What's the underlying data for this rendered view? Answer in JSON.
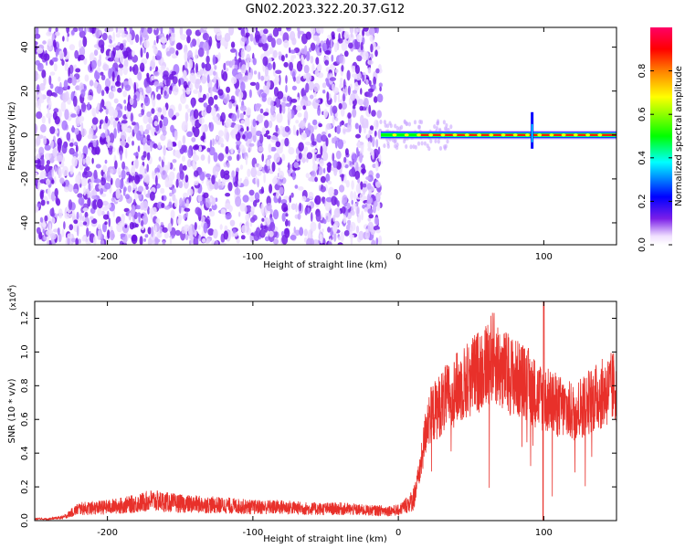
{
  "figure_title": "GN02.2023.322.20.37.G12",
  "colors": {
    "snr_line": "#e8302a",
    "axis": "#000000",
    "background": "#ffffff",
    "scatter_fill": "#7a2ee8"
  },
  "chart_data": [
    {
      "type": "heatmap",
      "title": "GN02.2023.322.20.37.G12",
      "xlabel": "Height of straight line (km)",
      "ylabel": "Frequency (Hz)",
      "xlim": [
        -250,
        150
      ],
      "ylim": [
        -50,
        49
      ],
      "x_ticks": [
        -200,
        -100,
        0,
        100
      ],
      "y_ticks": [
        -40,
        -20,
        0,
        20,
        40
      ],
      "x_tick_labels": [
        "-200",
        "-100",
        "0",
        "100"
      ],
      "y_tick_labels": [
        "-40",
        "-20",
        "0",
        "20",
        "40"
      ],
      "colorbar": {
        "label": "Normalized spectral amplitude",
        "range": [
          0,
          1
        ],
        "ticks": [
          0.0,
          0.2,
          0.4,
          0.6,
          0.8
        ],
        "tick_labels": [
          "0.0",
          "0.2",
          "0.4",
          "0.6",
          "0.8"
        ],
        "colors": [
          "#ffffff",
          "#7b1fe8",
          "#0000ff",
          "#00ffff",
          "#00ff00",
          "#ffff00",
          "#ff8000",
          "#ff0000",
          "#ff0066"
        ]
      },
      "noise_region": {
        "x_range": [
          -250,
          -12
        ],
        "y_range": [
          -50,
          49
        ],
        "amplitude_range": [
          0.0,
          0.1
        ]
      },
      "signal_line": {
        "x_range": [
          -12,
          150
        ],
        "frequency": 0,
        "peak_amplitude": 1.0,
        "spike_x": 92
      }
    },
    {
      "type": "line",
      "title": "",
      "xlabel": "Height of straight line (km)",
      "ylabel": "SNR (10 * v/v)",
      "y_scale_label": "(x10",
      "y_scale_exp": "4",
      "y_scale_close": ")",
      "xlim": [
        -250,
        150
      ],
      "ylim": [
        0,
        1.3
      ],
      "x_ticks": [
        -200,
        -100,
        0,
        100
      ],
      "y_ticks": [
        0.0,
        0.2,
        0.4,
        0.6,
        0.8,
        1.0,
        1.2
      ],
      "x_tick_labels": [
        "-200",
        "-100",
        "0",
        "100"
      ],
      "y_tick_labels": [
        "0.0",
        "0.2",
        "0.4",
        "0.6",
        "0.8",
        "1.0",
        "1.2"
      ],
      "grid": false,
      "series": [
        {
          "x": [
            -250,
            -240,
            -230,
            -220,
            -200,
            -180,
            -170,
            -150,
            -120,
            -100,
            -80,
            -60,
            -40,
            -20,
            -10,
            0,
            5,
            10,
            15,
            20,
            25,
            30,
            40,
            50,
            60,
            65,
            70,
            80,
            90,
            95,
            100,
            105,
            110,
            120,
            130,
            140,
            150
          ],
          "values": [
            0.01,
            0.01,
            0.02,
            0.07,
            0.08,
            0.1,
            0.12,
            0.1,
            0.09,
            0.08,
            0.08,
            0.07,
            0.07,
            0.06,
            0.06,
            0.06,
            0.09,
            0.12,
            0.3,
            0.6,
            0.65,
            0.7,
            0.78,
            0.85,
            0.92,
            0.98,
            0.9,
            0.85,
            0.8,
            0.75,
            0.72,
            0.7,
            0.68,
            0.64,
            0.7,
            0.75,
            0.8
          ]
        }
      ]
    }
  ]
}
